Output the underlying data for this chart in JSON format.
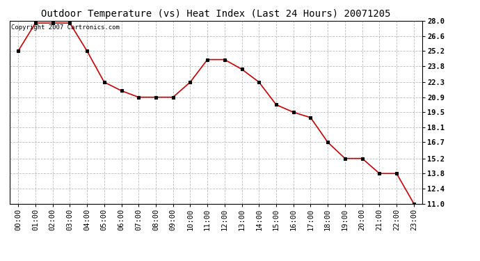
{
  "title": "Outdoor Temperature (vs) Heat Index (Last 24 Hours) 20071205",
  "copyright_text": "Copyright 2007 Cartronics.com",
  "x_labels": [
    "00:00",
    "01:00",
    "02:00",
    "03:00",
    "04:00",
    "05:00",
    "06:00",
    "07:00",
    "08:00",
    "09:00",
    "10:00",
    "11:00",
    "12:00",
    "13:00",
    "14:00",
    "15:00",
    "16:00",
    "17:00",
    "18:00",
    "19:00",
    "20:00",
    "21:00",
    "22:00",
    "23:00"
  ],
  "y_values": [
    25.2,
    27.8,
    27.8,
    27.8,
    25.2,
    22.3,
    21.5,
    20.9,
    20.9,
    20.9,
    22.3,
    24.4,
    24.4,
    23.5,
    22.3,
    20.2,
    19.5,
    19.0,
    16.7,
    15.2,
    15.2,
    13.8,
    13.8,
    11.0
  ],
  "line_color": "#cc0000",
  "marker_color": "#000000",
  "marker_style": "s",
  "marker_size": 2.5,
  "background_color": "#ffffff",
  "grid_color": "#bbbbbb",
  "y_min": 11.0,
  "y_max": 28.0,
  "y_ticks": [
    11.0,
    12.4,
    13.8,
    15.2,
    16.7,
    18.1,
    19.5,
    20.9,
    22.3,
    23.8,
    25.2,
    26.6,
    28.0
  ],
  "title_fontsize": 10,
  "tick_fontsize": 7.5,
  "copyright_fontsize": 6.5
}
